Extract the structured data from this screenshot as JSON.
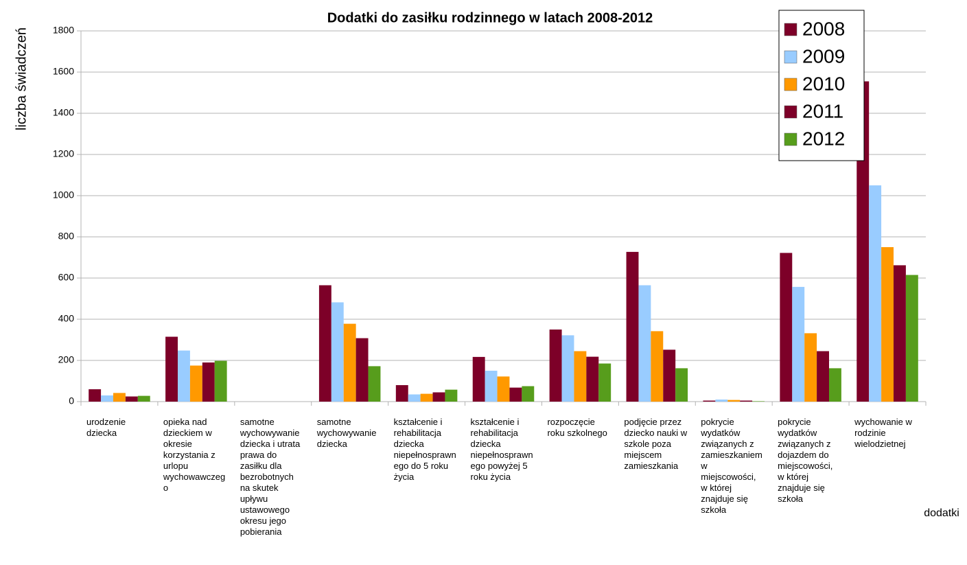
{
  "chart_data": {
    "type": "bar",
    "title": "Dodatki do zasiłku rodzinnego w latach 2008-2012",
    "ylabel": "liczba świadczeń",
    "xlabel": "dodatki",
    "categories": [
      "urodzenie\ndziecka",
      "opieka nad\ndzieckiem w\nokresie\nkorzystania z\nurlopu\nwychowawczeg\no",
      "samotne\nwychowywanie\ndziecka i utrata\nprawa do\nzasiłku dla\nbezrobotnych\nna skutek\nupływu\nustawowego\nokresu jego\npobierania",
      "samotne\nwychowywanie\ndziecka",
      "kształcenie i\nrehabilitacja\ndziecka\nniepełnosprawn\nego do 5 roku\nżycia",
      "kształcenie i\nrehabilitacja\ndziecka\nniepełnosprawn\nego powyżej 5\nroku życia",
      "rozpoczęcie\nroku szkolnego",
      "podjęcie przez\ndziecko nauki w\nszkole poza\nmiejscem\nzamieszkania",
      "pokrycie\nwydatków\nzwiązanych z\nzamieszkaniem\nw\nmiejscowości,\nw której\nznajduje się\nszkoła",
      "pokrycie\nwydatków\nzwiązanych z\ndojazdem do\nmiejscowości,\nw której\nznajduje się\nszkoła",
      "wychowanie w\nrodzinie\nwielodzietnej"
    ],
    "series": [
      {
        "name": "2008",
        "color": "#7d0028",
        "values": [
          60,
          315,
          0,
          565,
          80,
          217,
          350,
          727,
          5,
          722,
          1555
        ]
      },
      {
        "name": "2009",
        "color": "#99ccff",
        "values": [
          30,
          248,
          0,
          482,
          35,
          150,
          322,
          565,
          10,
          557,
          1050
        ]
      },
      {
        "name": "2010",
        "color": "#ff9900",
        "values": [
          42,
          175,
          0,
          378,
          38,
          122,
          245,
          342,
          8,
          332,
          750
        ]
      },
      {
        "name": "2011",
        "color": "#7d0028",
        "values": [
          25,
          190,
          0,
          308,
          45,
          68,
          218,
          252,
          5,
          245,
          662
        ]
      },
      {
        "name": "2012",
        "color": "#579d1c",
        "values": [
          28,
          198,
          0,
          172,
          58,
          75,
          185,
          162,
          2,
          162,
          615
        ]
      }
    ],
    "ylim": [
      0,
      1800
    ],
    "yticks": [
      0,
      200,
      400,
      600,
      800,
      1000,
      1200,
      1400,
      1600,
      1800
    ],
    "grid": true,
    "legend": "top-right"
  }
}
